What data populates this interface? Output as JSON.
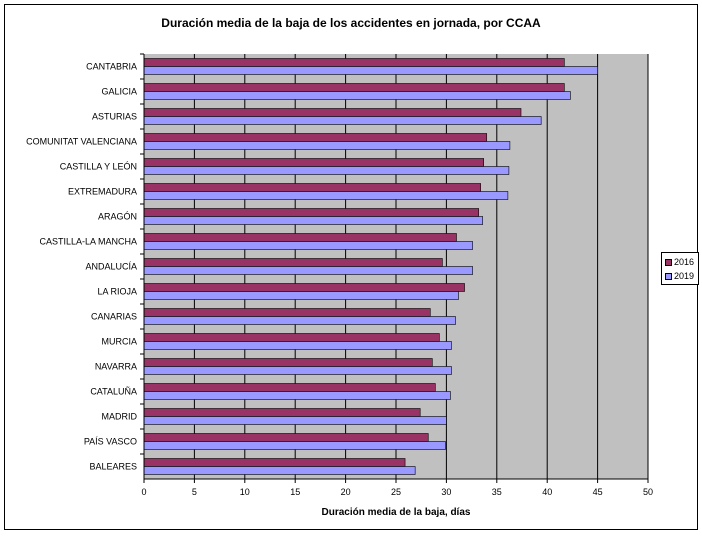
{
  "chart_data": {
    "type": "bar",
    "orientation": "horizontal",
    "title": "Duración media de la baja de los accidentes en jornada, por CCAA",
    "xlabel": "Duración media de la baja, días",
    "ylabel": "",
    "xlim": [
      0,
      50
    ],
    "x_ticks": [
      "0",
      "5",
      "10",
      "15",
      "20",
      "25",
      "30",
      "35",
      "40",
      "45",
      "50"
    ],
    "grid": "vertical gridlines at each major tick",
    "legend_position": "right",
    "categories": [
      "CANTABRIA",
      "GALICIA",
      "ASTURIAS",
      "COMUNITAT VALENCIANA",
      "CASTILLA Y LEÓN",
      "EXTREMADURA",
      "ARAGÓN",
      "CASTILLA-LA MANCHA",
      "ANDALUCÍA",
      "LA RIOJA",
      "CANARIAS",
      "MURCIA",
      "NAVARRA",
      "CATALUÑA",
      "MADRID",
      "PAÍS VASCO",
      "BALEARES"
    ],
    "series": [
      {
        "name": "2016",
        "color": "#993366",
        "values": [
          41.7,
          41.7,
          37.4,
          34.0,
          33.7,
          33.4,
          33.2,
          31.0,
          29.6,
          31.8,
          28.4,
          29.3,
          28.6,
          28.9,
          27.4,
          28.2,
          25.9
        ]
      },
      {
        "name": "2019",
        "color": "#9999FF",
        "values": [
          45.0,
          42.3,
          39.4,
          36.3,
          36.2,
          36.1,
          33.6,
          32.6,
          32.6,
          31.2,
          30.9,
          30.5,
          30.5,
          30.4,
          30.0,
          29.9,
          26.9
        ]
      }
    ]
  }
}
